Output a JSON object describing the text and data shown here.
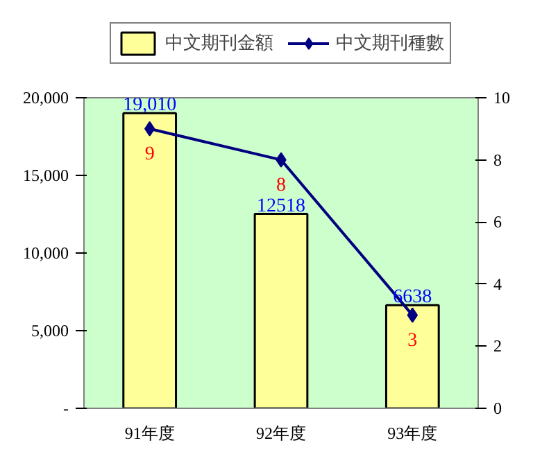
{
  "chart_data": {
    "type": "bar",
    "categories": [
      "91年度",
      "92年度",
      "93年度"
    ],
    "series": [
      {
        "name": "中文期刊金額",
        "color": "#ffff99",
        "values": [
          19010,
          12518,
          6638
        ],
        "value_labels": [
          "19,010",
          "12518",
          "6638"
        ]
      },
      {
        "name": "中文期刊種數",
        "type": "line",
        "axis": "y2",
        "color": "#000080",
        "values": [
          9,
          8,
          3
        ],
        "value_labels": [
          "9",
          "8",
          "3"
        ],
        "marker": "diamond"
      }
    ],
    "ylim": [
      0,
      20000
    ],
    "yticks": [
      {
        "value": 0,
        "label": "-"
      },
      {
        "value": 5000,
        "label": "5,000"
      },
      {
        "value": 10000,
        "label": "10,000"
      },
      {
        "value": 15000,
        "label": "15,000"
      },
      {
        "value": 20000,
        "label": "20,000"
      }
    ],
    "y2lim": [
      0,
      10
    ],
    "y2ticks": [
      0,
      2,
      4,
      6,
      8,
      10
    ],
    "grid": false,
    "legend": "top"
  }
}
